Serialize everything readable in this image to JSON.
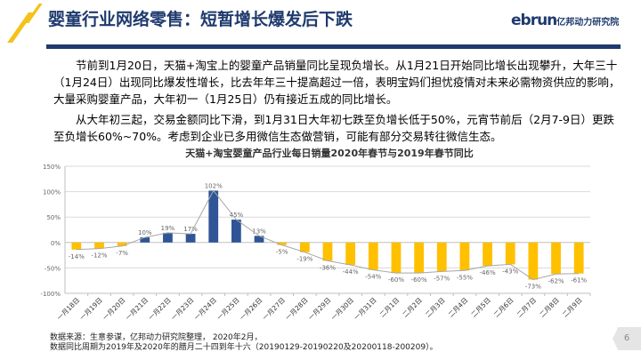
{
  "header": {
    "title": "婴童行业网络零售：短暂增长爆发后下跌",
    "logo": "ebrun",
    "logo_sub": "亿邦动力研究院"
  },
  "body": {
    "p1": "节前到1月20日，天猫+淘宝上的婴童产品销量同比呈现负增长。从1月21日开始同比增长出现攀升，大年三十（1月24日）出现同比爆发性增长，比去年年三十提高超过一倍，表明宝妈们担忧疫情对未来必需物资供应的影响，大量采购婴童产品，大年初一（1月25日）仍有接近五成的同比增长。",
    "p2": "从大年初三起，交易金额同比下滑，到1月31日大年初七跌至负增长低于50%，元宵节前后（2月7-9日）更跌至负增长60%~70%。考虑到企业已多用微信生态做营销，可能有部分交易转往微信生态。"
  },
  "footer": {
    "source_line1": "数据来源：生意参谋，亿邦动力研究院整理， 2020年2月，",
    "source_line2": "数据同比周期为2019年及2020年的腊月二十四到年十六（20190129-20190220及20200118-200209）。",
    "page": "6"
  },
  "chart_data": {
    "type": "bar",
    "title": "天猫+淘宝婴童产品行业每日销量2020年春节与2019年春节同比",
    "categories": [
      "一月18日",
      "一月19日",
      "一月20日",
      "一月21日",
      "一月22日",
      "一月23日",
      "一月24日",
      "一月25日",
      "一月26日",
      "一月27日",
      "一月28日",
      "一月29日",
      "一月30日",
      "一月31日",
      "二月1日",
      "二月2日",
      "二月3日",
      "二月4日",
      "二月5日",
      "二月6日",
      "二月7日",
      "二月8日",
      "二月9日"
    ],
    "values": [
      -14,
      -12,
      -7,
      10,
      19,
      17,
      102,
      45,
      13,
      -5,
      -19,
      -36,
      -44,
      -54,
      -60,
      -60,
      -57,
      -55,
      -46,
      -43,
      -73,
      -62,
      -61
    ],
    "unit": "%",
    "ylim": [
      -100,
      150
    ],
    "yticks": [
      150,
      100,
      50,
      0,
      -50,
      -100
    ],
    "ytick_labels": [
      "150%",
      "100%",
      "50%",
      "0%",
      "-50%",
      "-100%"
    ],
    "overlay_line": true,
    "grid": true,
    "colors": {
      "positive": "#2f5597",
      "negative": "#ffc000",
      "line": "#a6a6a6"
    }
  }
}
